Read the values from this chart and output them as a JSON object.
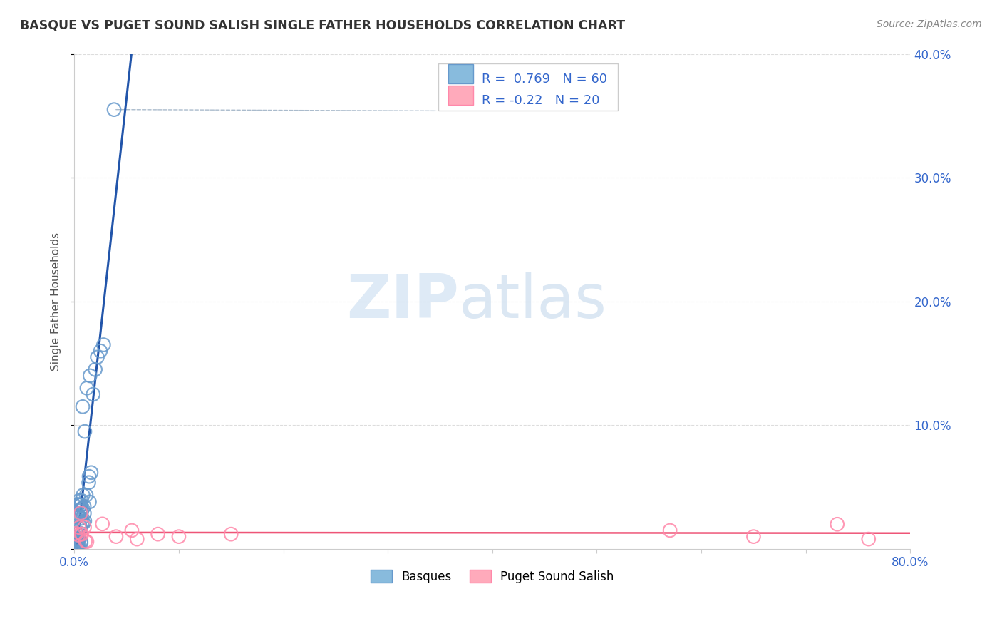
{
  "title": "BASQUE VS PUGET SOUND SALISH SINGLE FATHER HOUSEHOLDS CORRELATION CHART",
  "source": "Source: ZipAtlas.com",
  "ylabel": "Single Father Households",
  "xlim": [
    0.0,
    0.8
  ],
  "ylim": [
    0.0,
    0.4
  ],
  "blue_color": "#88BBDD",
  "blue_edge": "#6699CC",
  "pink_color": "#FFAABB",
  "pink_edge": "#FF88AA",
  "blue_line_color": "#2255AA",
  "pink_line_color": "#EE5577",
  "blue_R": 0.769,
  "blue_N": 60,
  "pink_R": -0.22,
  "pink_N": 20,
  "grid_color": "#DDDDDD",
  "axis_color": "#CCCCCC",
  "tick_color": "#3366CC",
  "title_color": "#333333",
  "source_color": "#888888",
  "ylabel_color": "#555555",
  "legend_box_color": "#EEEEEE",
  "dashed_line_color": "#AABBCC",
  "watermark_zip_color": "#C8DCF0",
  "watermark_atlas_color": "#B8D0E8"
}
